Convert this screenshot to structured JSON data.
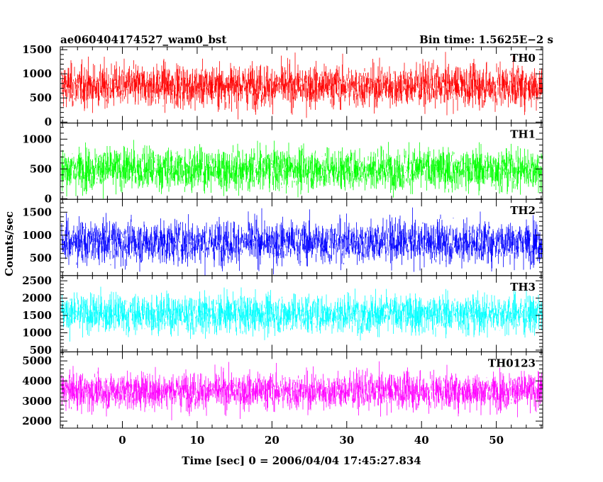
{
  "header": {
    "title": "ae060404174527_wam0_bst",
    "bin_time": "Bin time: 1.5625E−2 s"
  },
  "chart_data": {
    "type": "line",
    "ylabel": "Counts/sec",
    "xlabel": "Time [sec] 0 = 2006/04/04 17:45:27.834",
    "x_range": [
      -8.3,
      56.2
    ],
    "x_view": [
      -8.3,
      56.2
    ],
    "x_ticks": [
      0,
      10,
      20,
      30,
      40,
      50
    ],
    "x_tick_labels": [
      "0",
      "10",
      "20",
      "30",
      "40",
      "50"
    ],
    "x_minor_step": 2,
    "panels": [
      {
        "name": "TH0",
        "color": "#ff0000",
        "ylim": [
          -20,
          1560
        ],
        "mean": 750,
        "spread": 310,
        "ymin": 0,
        "y_ticks": [
          0,
          500,
          1000,
          1500
        ],
        "y_tick_labels": [
          "0",
          "500",
          "1000",
          "1500"
        ],
        "y_minor_step": 100
      },
      {
        "name": "TH1",
        "color": "#00ff00",
        "ylim": [
          -10,
          1270
        ],
        "mean": 500,
        "spread": 250,
        "ymin": 0,
        "y_ticks": [
          0,
          500,
          1000
        ],
        "y_tick_labels": [
          "0",
          "500",
          "1000"
        ],
        "y_minor_step": 100
      },
      {
        "name": "TH2",
        "color": "#0000ff",
        "ylim": [
          120,
          1780
        ],
        "mean": 850,
        "spread": 330,
        "ymin": 0,
        "y_ticks": [
          500,
          1000,
          1500
        ],
        "y_tick_labels": [
          "500",
          "1000",
          "1500"
        ],
        "y_minor_step": 100
      },
      {
        "name": "TH3",
        "color": "#00ffff",
        "ylim": [
          450,
          2650
        ],
        "mean": 1550,
        "spread": 400,
        "ymin": 0,
        "y_ticks": [
          500,
          1000,
          1500,
          2000,
          2500
        ],
        "y_tick_labels": [
          "500",
          "1000",
          "1500",
          "2000",
          "2500"
        ],
        "y_minor_step": 100
      },
      {
        "name": "TH0123",
        "color": "#ff00ff",
        "ylim": [
          1650,
          5450
        ],
        "mean": 3500,
        "spread": 650,
        "ymin": 0,
        "y_ticks": [
          2000,
          3000,
          4000,
          5000
        ],
        "y_tick_labels": [
          "2000",
          "3000",
          "4000",
          "5000"
        ],
        "y_minor_step": 200
      }
    ]
  }
}
